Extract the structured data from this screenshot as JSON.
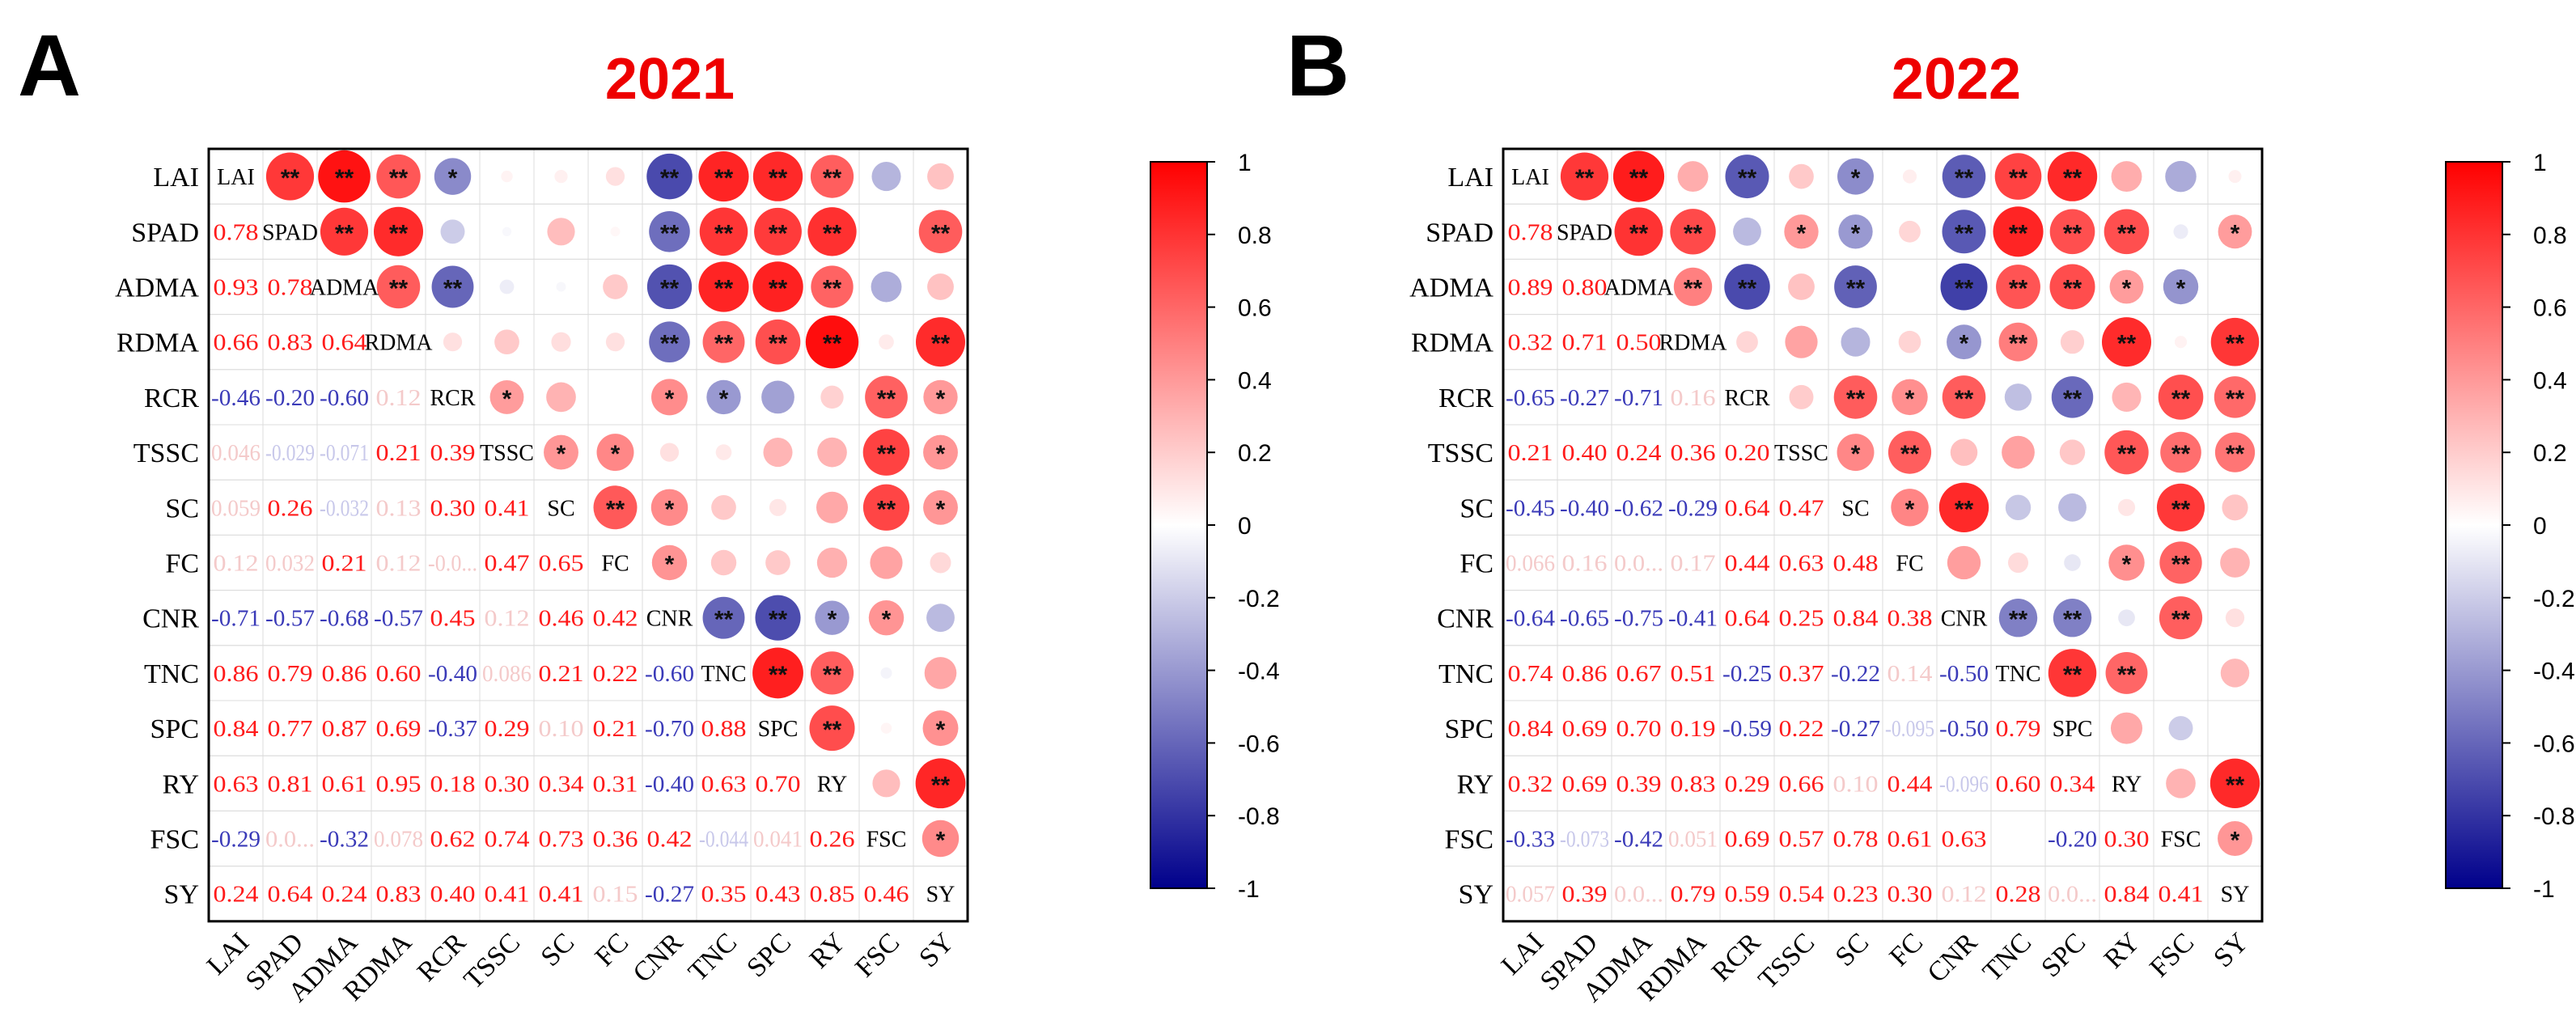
{
  "chart_data": [
    {
      "type": "heatmap",
      "panel_label": "A",
      "title": "2021",
      "variables": [
        "LAI",
        "SPAD",
        "ADMA",
        "RDMA",
        "RCR",
        "TSSC",
        "SC",
        "FC",
        "CNR",
        "TNC",
        "SPC",
        "RY",
        "FSC",
        "SY"
      ],
      "lower_labels": [
        [],
        [
          "0.78"
        ],
        [
          "0.93",
          "0.78"
        ],
        [
          "0.66",
          "0.83",
          "0.64"
        ],
        [
          "-0.46",
          "-0.20",
          "-0.60",
          "0.12"
        ],
        [
          "0.046",
          "-0.029",
          "-0.071",
          "0.21",
          "0.39"
        ],
        [
          "0.059",
          "0.26",
          "-0.032",
          "0.13",
          "0.30",
          "0.41"
        ],
        [
          "0.12",
          "0.032",
          "0.21",
          "0.12",
          "-0.0...",
          "0.47",
          "0.65"
        ],
        [
          "-0.71",
          "-0.57",
          "-0.68",
          "-0.57",
          "0.45",
          "0.12",
          "0.46",
          "0.42"
        ],
        [
          "0.86",
          "0.79",
          "0.86",
          "0.60",
          "-0.40",
          "0.086",
          "0.21",
          "0.22",
          "-0.60"
        ],
        [
          "0.84",
          "0.77",
          "0.87",
          "0.69",
          "-0.37",
          "0.29",
          "0.10",
          "0.21",
          "-0.70",
          "0.88"
        ],
        [
          "0.63",
          "0.81",
          "0.61",
          "0.95",
          "0.18",
          "0.30",
          "0.34",
          "0.31",
          "-0.40",
          "0.63",
          "0.70"
        ],
        [
          "-0.29",
          "0.0...",
          "-0.32",
          "0.078",
          "0.62",
          "0.74",
          "0.73",
          "0.36",
          "0.42",
          "-0.044",
          "0.041",
          "0.26"
        ],
        [
          "0.24",
          "0.64",
          "0.24",
          "0.83",
          "0.40",
          "0.41",
          "0.41",
          "0.15",
          "-0.27",
          "0.35",
          "0.43",
          "0.85",
          "0.46"
        ]
      ],
      "significance": [
        [
          "",
          "**",
          "**",
          "**",
          "*",
          "",
          "",
          "",
          "**",
          "**",
          "**",
          "**",
          "",
          ""
        ],
        [
          "",
          "",
          "**",
          "**",
          "",
          "",
          "",
          "",
          "**",
          "**",
          "**",
          "**",
          "",
          "**"
        ],
        [
          "",
          "",
          "",
          "**",
          "**",
          "",
          "",
          "",
          "**",
          "**",
          "**",
          "**",
          "",
          ""
        ],
        [
          "",
          "",
          "",
          "",
          "",
          "",
          "",
          "",
          "**",
          "**",
          "**",
          "**",
          "",
          "**"
        ],
        [
          "",
          "",
          "",
          "",
          "",
          "*",
          "",
          "",
          "*",
          "*",
          "",
          "",
          "**",
          "*"
        ],
        [
          "",
          "",
          "",
          "",
          "",
          "",
          "*",
          "*",
          "",
          "",
          "",
          "",
          "**",
          "*"
        ],
        [
          "",
          "",
          "",
          "",
          "",
          "",
          "",
          "**",
          "*",
          "",
          "",
          "",
          "**",
          "*"
        ],
        [
          "",
          "",
          "",
          "",
          "",
          "",
          "",
          "",
          "*",
          "",
          "",
          "",
          "",
          ""
        ],
        [
          "",
          "",
          "",
          "",
          "",
          "",
          "",
          "",
          "",
          "**",
          "**",
          "*",
          "*",
          ""
        ],
        [
          "",
          "",
          "",
          "",
          "",
          "",
          "",
          "",
          "",
          "",
          "**",
          "**",
          "",
          ""
        ],
        [
          "",
          "",
          "",
          "",
          "",
          "",
          "",
          "",
          "",
          "",
          "",
          "**",
          "",
          "*"
        ],
        [
          "",
          "",
          "",
          "",
          "",
          "",
          "",
          "",
          "",
          "",
          "",
          "",
          "",
          "**"
        ],
        [
          "",
          "",
          "",
          "",
          "",
          "",
          "",
          "",
          "",
          "",
          "",
          "",
          "",
          "*"
        ],
        [
          "",
          "",
          "",
          "",
          "",
          "",
          "",
          "",
          "",
          "",
          "",
          "",
          "",
          ""
        ]
      ],
      "colorbar": {
        "min": -1,
        "max": 1,
        "ticks": [
          "1",
          "0.8",
          "0.6",
          "0.4",
          "0.2",
          "0",
          "-0.2",
          "-0.4",
          "-0.6",
          "-0.8",
          "-1"
        ]
      }
    },
    {
      "type": "heatmap",
      "panel_label": "B",
      "title": "2022",
      "variables": [
        "LAI",
        "SPAD",
        "ADMA",
        "RDMA",
        "RCR",
        "TSSC",
        "SC",
        "FC",
        "CNR",
        "TNC",
        "SPC",
        "RY",
        "FSC",
        "SY"
      ],
      "lower_labels": [
        [],
        [
          "0.78"
        ],
        [
          "0.89",
          "0.80"
        ],
        [
          "0.32",
          "0.71",
          "0.50"
        ],
        [
          "-0.65",
          "-0.27",
          "-0.71",
          "0.16"
        ],
        [
          "0.21",
          "0.40",
          "0.24",
          "0.36",
          "0.20"
        ],
        [
          "-0.45",
          "-0.40",
          "-0.62",
          "-0.29",
          "0.64",
          "0.47"
        ],
        [
          "0.066",
          "0.16",
          "0.0...",
          "0.17",
          "0.44",
          "0.63",
          "0.48"
        ],
        [
          "-0.64",
          "-0.65",
          "-0.75",
          "-0.41",
          "0.64",
          "0.25",
          "0.84",
          "0.38"
        ],
        [
          "0.74",
          "0.86",
          "0.67",
          "0.51",
          "-0.25",
          "0.37",
          "-0.22",
          "0.14",
          "-0.50"
        ],
        [
          "0.84",
          "0.69",
          "0.70",
          "0.19",
          "-0.59",
          "0.22",
          "-0.27",
          "-0.095",
          "-0.50",
          "0.79"
        ],
        [
          "0.32",
          "0.69",
          "0.39",
          "0.83",
          "0.29",
          "0.66",
          "0.10",
          "0.44",
          "-0.096",
          "0.60",
          "0.34"
        ],
        [
          "-0.33",
          "-0.073",
          "-0.42",
          "0.051",
          "0.69",
          "0.57",
          "0.78",
          "0.61",
          "0.63",
          "",
          "-0.20",
          "0.30"
        ],
        [
          "0.057",
          "0.39",
          "0.0...",
          "0.79",
          "0.59",
          "0.54",
          "0.23",
          "0.30",
          "0.12",
          "0.28",
          "0.0...",
          "0.84",
          "0.41"
        ]
      ],
      "significance": [
        [
          "",
          "**",
          "**",
          "",
          "**",
          "",
          "*",
          "",
          "**",
          "**",
          "**",
          "",
          "",
          ""
        ],
        [
          "",
          "",
          "**",
          "**",
          "",
          "*",
          "*",
          "",
          "**",
          "**",
          "**",
          "**",
          "",
          "*"
        ],
        [
          "",
          "",
          "",
          "**",
          "**",
          "",
          "**",
          "",
          "**",
          "**",
          "**",
          "*",
          "*",
          ""
        ],
        [
          "",
          "",
          "",
          "",
          "",
          "",
          "",
          "",
          "*",
          "**",
          "",
          "**",
          "",
          "**"
        ],
        [
          "",
          "",
          "",
          "",
          "",
          "",
          "**",
          "*",
          "**",
          "",
          "**",
          "",
          "**",
          "**"
        ],
        [
          "",
          "",
          "",
          "",
          "",
          "",
          "*",
          "**",
          "",
          "",
          "",
          "**",
          "**",
          "**"
        ],
        [
          "",
          "",
          "",
          "",
          "",
          "",
          "",
          "*",
          "**",
          "",
          "",
          "",
          "**",
          ""
        ],
        [
          "",
          "",
          "",
          "",
          "",
          "",
          "",
          "",
          "",
          "",
          "",
          "*",
          "**",
          ""
        ],
        [
          "",
          "",
          "",
          "",
          "",
          "",
          "",
          "",
          "",
          "**",
          "**",
          "",
          "**",
          ""
        ],
        [
          "",
          "",
          "",
          "",
          "",
          "",
          "",
          "",
          "",
          "",
          "**",
          "**",
          "",
          ""
        ],
        [
          "",
          "",
          "",
          "",
          "",
          "",
          "",
          "",
          "",
          "",
          "",
          "",
          "",
          ""
        ],
        [
          "",
          "",
          "",
          "",
          "",
          "",
          "",
          "",
          "",
          "",
          "",
          "",
          "",
          "**"
        ],
        [
          "",
          "",
          "",
          "",
          "",
          "",
          "",
          "",
          "",
          "",
          "",
          "",
          "",
          "*"
        ],
        [
          "",
          "",
          "",
          "",
          "",
          "",
          "",
          "",
          "",
          "",
          "",
          "",
          "",
          ""
        ]
      ],
      "colorbar": {
        "min": -1,
        "max": 1,
        "ticks": [
          "1",
          "0.8",
          "0.6",
          "0.4",
          "0.2",
          "0",
          "-0.2",
          "-0.4",
          "-0.6",
          "-0.8",
          "-1"
        ]
      }
    }
  ]
}
